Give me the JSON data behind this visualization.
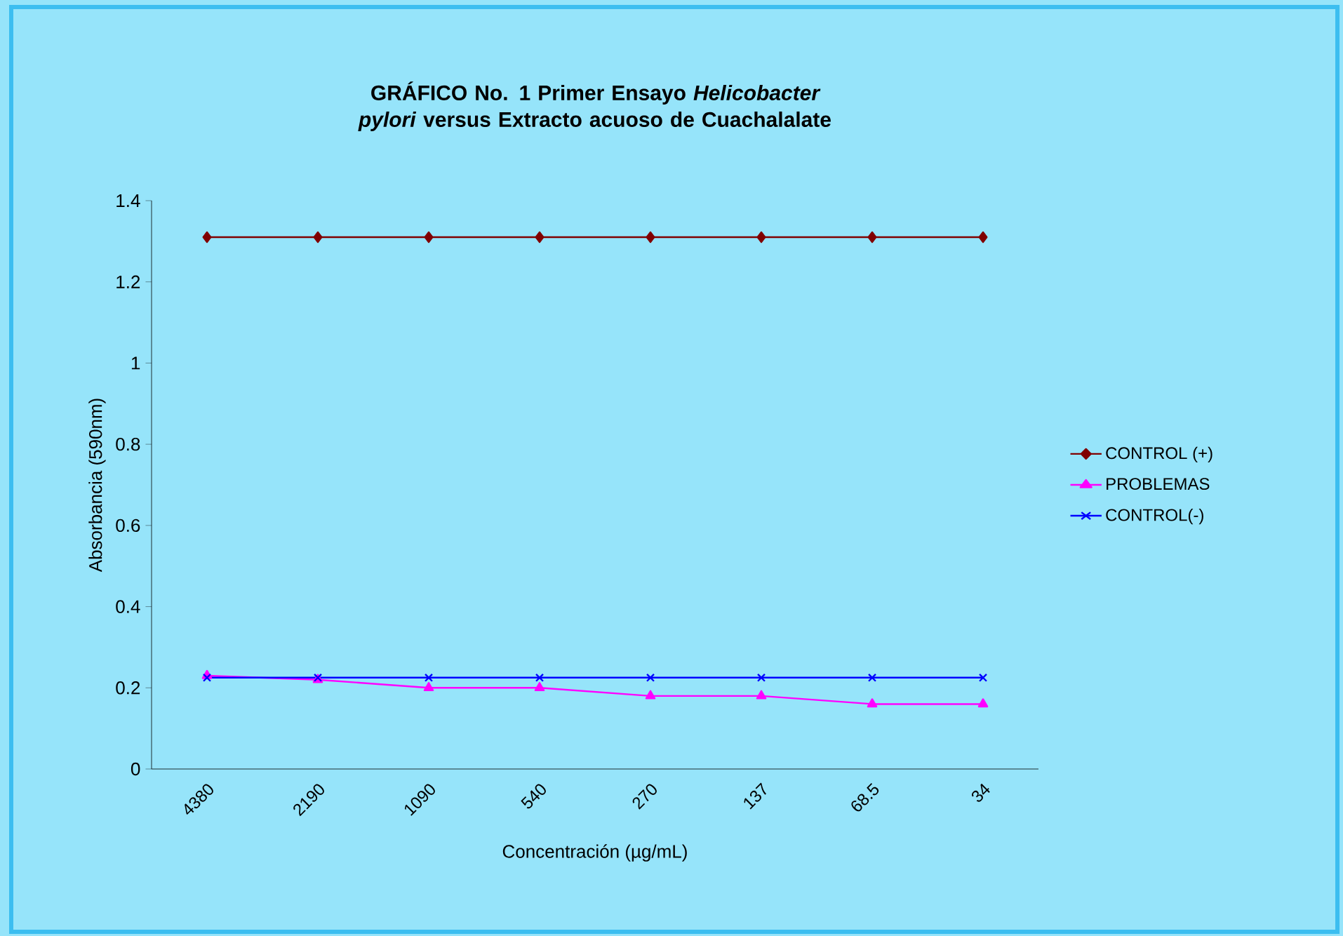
{
  "chart_data": {
    "type": "line",
    "title": "GRÁFICO No. 1 Primer Ensayo *Helicobacter pylori* versus Extracto acuoso de Cuachalalate",
    "xlabel": "Concentración (µg/mL)",
    "ylabel": "Absorbancia (590nm)",
    "categories": [
      "4380",
      "2190",
      "1090",
      "540",
      "270",
      "137",
      "68.5",
      "34"
    ],
    "ylim": [
      0,
      1.4
    ],
    "yticks": [
      0,
      0.2,
      0.4,
      0.6,
      0.8,
      1,
      1.2,
      1.4
    ],
    "grid": false,
    "legend": "right",
    "series": [
      {
        "name": "CONTROL (+)",
        "color": "#800000",
        "marker": "diamond",
        "values": [
          1.31,
          1.31,
          1.31,
          1.31,
          1.31,
          1.31,
          1.31,
          1.31
        ]
      },
      {
        "name": "PROBLEMAS",
        "color": "#ff00ff",
        "marker": "triangle",
        "values": [
          0.23,
          0.22,
          0.2,
          0.2,
          0.18,
          0.18,
          0.16,
          0.16
        ]
      },
      {
        "name": "CONTROL(-)",
        "color": "#0000ff",
        "marker": "cross",
        "values": [
          0.225,
          0.225,
          0.225,
          0.225,
          0.225,
          0.225,
          0.225,
          0.225
        ]
      }
    ]
  }
}
